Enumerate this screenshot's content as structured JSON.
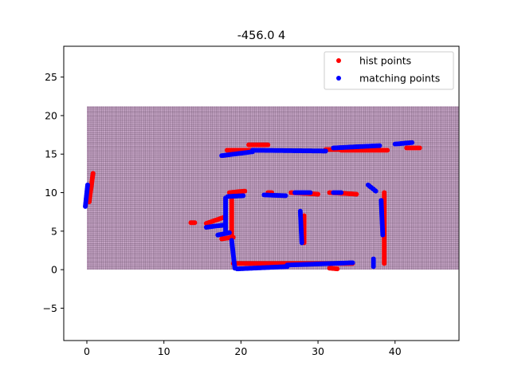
{
  "chart_data": {
    "type": "scatter",
    "title": "-456.0 4",
    "xlabel": "",
    "ylabel": "",
    "xlim": [
      -3,
      48.3
    ],
    "ylim": [
      -9.2,
      29.0
    ],
    "xticks": [
      0,
      10,
      20,
      30,
      40
    ],
    "yticks": [
      -5,
      0,
      5,
      10,
      15,
      20,
      25
    ],
    "xtick_labels": [
      "0",
      "10",
      "20",
      "30",
      "40"
    ],
    "ytick_labels": [
      "−5",
      "0",
      "5",
      "10",
      "15",
      "20",
      "25"
    ],
    "grid_region": {
      "x": [
        0,
        48.3
      ],
      "y": [
        0,
        21.2
      ],
      "spacing": 0.25,
      "fill": "#c9a8c9",
      "line_color": "#3a1f3a"
    },
    "legend": {
      "position": "top-right",
      "entries": [
        "hist points",
        "matching points"
      ]
    },
    "series": [
      {
        "name": "hist points",
        "color": "#ff0000",
        "segments": [
          {
            "x0": 0.3,
            "y0": 8.8,
            "x1": 0.8,
            "y1": 12.5
          },
          {
            "x0": 18.2,
            "y0": 15.5,
            "x1": 23.0,
            "y1": 15.5
          },
          {
            "x0": 21.0,
            "y0": 16.2,
            "x1": 23.5,
            "y1": 16.2
          },
          {
            "x0": 31.0,
            "y0": 15.6,
            "x1": 34.5,
            "y1": 15.6
          },
          {
            "x0": 33.0,
            "y0": 15.5,
            "x1": 39.0,
            "y1": 15.5
          },
          {
            "x0": 41.5,
            "y0": 15.8,
            "x1": 43.2,
            "y1": 15.8
          },
          {
            "x0": 18.5,
            "y0": 10.0,
            "x1": 20.5,
            "y1": 10.2
          },
          {
            "x0": 23.5,
            "y0": 10.0,
            "x1": 24.0,
            "y1": 10.0
          },
          {
            "x0": 26.5,
            "y0": 10.0,
            "x1": 30.0,
            "y1": 9.8
          },
          {
            "x0": 31.5,
            "y0": 10.0,
            "x1": 35.0,
            "y1": 9.8
          },
          {
            "x0": 38.6,
            "y0": 10.0,
            "x1": 38.6,
            "y1": 0.8
          },
          {
            "x0": 15.5,
            "y0": 6.0,
            "x1": 17.8,
            "y1": 6.8
          },
          {
            "x0": 18.8,
            "y0": 9.5,
            "x1": 18.8,
            "y1": 4.0
          },
          {
            "x0": 17.5,
            "y0": 4.0,
            "x1": 19.0,
            "y1": 4.2
          },
          {
            "x0": 19.0,
            "y0": 0.8,
            "x1": 34.5,
            "y1": 0.8
          },
          {
            "x0": 28.2,
            "y0": 7.0,
            "x1": 28.2,
            "y1": 3.5
          },
          {
            "x0": 31.5,
            "y0": 0.2,
            "x1": 32.5,
            "y1": 0.1
          },
          {
            "x0": 13.5,
            "y0": 6.1,
            "x1": 14.0,
            "y1": 6.1
          }
        ]
      },
      {
        "name": "matching points",
        "color": "#0000ff",
        "segments": [
          {
            "x0": -0.2,
            "y0": 8.2,
            "x1": 0.1,
            "y1": 11.0
          },
          {
            "x0": 17.5,
            "y0": 14.8,
            "x1": 21.5,
            "y1": 15.3
          },
          {
            "x0": 21.5,
            "y0": 15.5,
            "x1": 31.0,
            "y1": 15.4
          },
          {
            "x0": 32.0,
            "y0": 15.8,
            "x1": 38.0,
            "y1": 16.1
          },
          {
            "x0": 40.0,
            "y0": 16.3,
            "x1": 42.2,
            "y1": 16.5
          },
          {
            "x0": 18.3,
            "y0": 9.5,
            "x1": 20.3,
            "y1": 9.6
          },
          {
            "x0": 23.0,
            "y0": 9.7,
            "x1": 25.8,
            "y1": 9.6
          },
          {
            "x0": 27.0,
            "y0": 10.0,
            "x1": 29.0,
            "y1": 10.0
          },
          {
            "x0": 32.0,
            "y0": 10.0,
            "x1": 33.0,
            "y1": 10.0
          },
          {
            "x0": 36.5,
            "y0": 11.0,
            "x1": 37.5,
            "y1": 10.2
          },
          {
            "x0": 38.2,
            "y0": 9.0,
            "x1": 38.4,
            "y1": 4.5
          },
          {
            "x0": 15.5,
            "y0": 5.5,
            "x1": 17.8,
            "y1": 5.8
          },
          {
            "x0": 18.0,
            "y0": 9.3,
            "x1": 18.0,
            "y1": 5.0
          },
          {
            "x0": 17.0,
            "y0": 4.5,
            "x1": 18.5,
            "y1": 4.8
          },
          {
            "x0": 18.8,
            "y0": 3.8,
            "x1": 19.2,
            "y1": 0.2
          },
          {
            "x0": 19.5,
            "y0": 0.1,
            "x1": 26.0,
            "y1": 0.4
          },
          {
            "x0": 26.0,
            "y0": 0.6,
            "x1": 34.5,
            "y1": 0.9
          },
          {
            "x0": 27.7,
            "y0": 7.6,
            "x1": 27.9,
            "y1": 3.5
          },
          {
            "x0": 37.2,
            "y0": 1.4,
            "x1": 37.2,
            "y1": 0.4
          }
        ]
      }
    ]
  }
}
